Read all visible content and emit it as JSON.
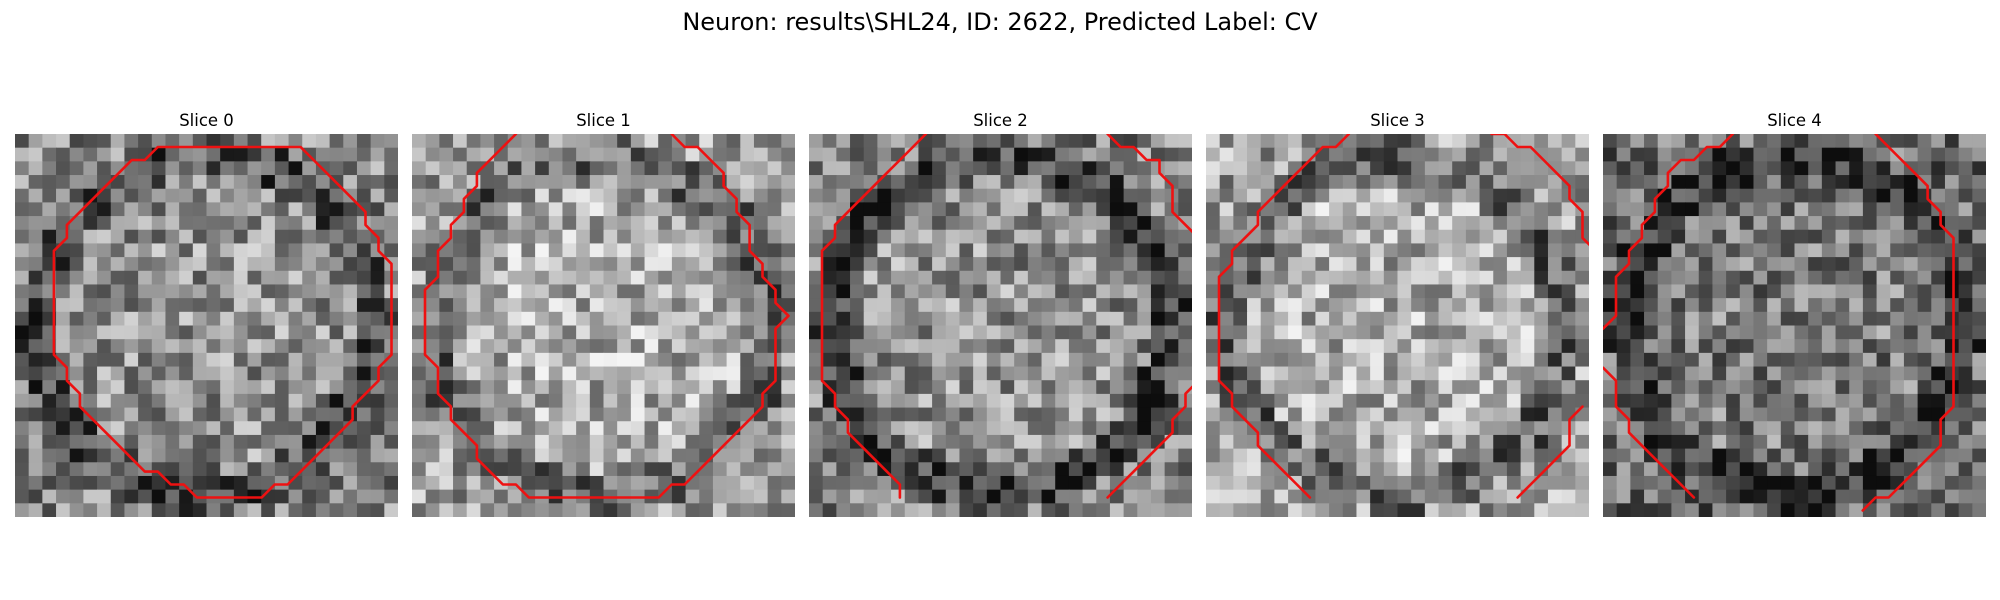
{
  "figure": {
    "title": "Neuron: results\\SHL24, ID: 2622, Predicted Label: CV"
  },
  "colors": {
    "contour": "#ee1111",
    "background": "#ffffff",
    "colormap": "gray"
  },
  "grid_size": 28,
  "slices": [
    {
      "title": "Slice 0",
      "brightness": "medium",
      "contours": [
        [
          [
            14,
            1
          ],
          [
            22,
            1
          ],
          [
            23,
            2
          ],
          [
            24,
            3
          ],
          [
            25,
            4
          ],
          [
            26,
            5
          ],
          [
            27,
            6
          ],
          [
            27,
            7
          ],
          [
            28,
            8
          ],
          [
            28,
            9
          ],
          [
            29,
            10
          ],
          [
            29,
            17
          ],
          [
            28,
            18
          ],
          [
            28,
            19
          ],
          [
            27,
            20
          ],
          [
            26,
            21
          ],
          [
            26,
            22
          ],
          [
            25,
            23
          ],
          [
            24,
            24
          ],
          [
            23,
            25
          ],
          [
            22,
            26
          ],
          [
            21,
            27
          ],
          [
            20,
            27
          ],
          [
            19,
            28
          ],
          [
            14,
            28
          ],
          [
            13,
            27
          ],
          [
            12,
            27
          ],
          [
            11,
            26
          ],
          [
            10,
            26
          ],
          [
            9,
            25
          ],
          [
            8,
            24
          ],
          [
            7,
            23
          ],
          [
            6,
            22
          ],
          [
            5,
            21
          ],
          [
            5,
            20
          ],
          [
            4,
            19
          ],
          [
            4,
            18
          ],
          [
            3,
            17
          ],
          [
            3,
            10
          ],
          [
            3,
            9
          ],
          [
            4,
            8
          ],
          [
            4,
            7
          ],
          [
            5,
            6
          ],
          [
            6,
            5
          ],
          [
            7,
            4
          ],
          [
            8,
            3
          ],
          [
            9,
            2
          ],
          [
            10,
            2
          ],
          [
            11,
            1
          ],
          [
            14,
            1
          ]
        ]
      ]
    },
    {
      "title": "Slice 1",
      "brightness": "bright",
      "contours": [
        [
          [
            8,
            0
          ],
          [
            7,
            1
          ],
          [
            6,
            2
          ],
          [
            5,
            3
          ],
          [
            5,
            4
          ],
          [
            4,
            5
          ],
          [
            4,
            6
          ],
          [
            3,
            7
          ],
          [
            3,
            8
          ],
          [
            2,
            9
          ],
          [
            2,
            11
          ],
          [
            1,
            12
          ],
          [
            1,
            17
          ],
          [
            2,
            18
          ],
          [
            2,
            20
          ],
          [
            3,
            21
          ],
          [
            3,
            22
          ],
          [
            4,
            23
          ],
          [
            5,
            24
          ],
          [
            5,
            25
          ],
          [
            6,
            26
          ],
          [
            7,
            27
          ],
          [
            8,
            27
          ],
          [
            9,
            28
          ],
          [
            19,
            28
          ],
          [
            20,
            27
          ],
          [
            21,
            27
          ],
          [
            22,
            26
          ],
          [
            23,
            25
          ],
          [
            24,
            24
          ],
          [
            25,
            23
          ],
          [
            26,
            22
          ],
          [
            27,
            21
          ],
          [
            27,
            20
          ],
          [
            28,
            19
          ],
          [
            28,
            15
          ],
          [
            29,
            14
          ],
          [
            28,
            13
          ],
          [
            28,
            12
          ],
          [
            27,
            11
          ],
          [
            27,
            10
          ],
          [
            26,
            9
          ],
          [
            26,
            7
          ],
          [
            25,
            6
          ],
          [
            25,
            5
          ],
          [
            24,
            4
          ],
          [
            24,
            3
          ],
          [
            23,
            2
          ],
          [
            22,
            1
          ],
          [
            21,
            1
          ],
          [
            20,
            0
          ]
        ]
      ]
    },
    {
      "title": "Slice 2",
      "brightness": "mixed",
      "contours": [
        [
          [
            9,
            0
          ],
          [
            8,
            1
          ],
          [
            7,
            2
          ],
          [
            6,
            3
          ],
          [
            5,
            4
          ],
          [
            4,
            5
          ],
          [
            3,
            6
          ],
          [
            2,
            7
          ],
          [
            2,
            8
          ],
          [
            1,
            9
          ],
          [
            1,
            19
          ],
          [
            2,
            20
          ],
          [
            2,
            21
          ],
          [
            3,
            22
          ],
          [
            3,
            23
          ],
          [
            4,
            24
          ],
          [
            5,
            25
          ],
          [
            6,
            26
          ],
          [
            7,
            27
          ],
          [
            7,
            28
          ]
        ],
        [
          [
            23,
            0
          ],
          [
            24,
            1
          ],
          [
            25,
            1
          ],
          [
            26,
            2
          ],
          [
            27,
            2
          ],
          [
            27,
            3
          ],
          [
            28,
            4
          ],
          [
            28,
            6
          ],
          [
            29,
            7
          ],
          [
            30,
            8
          ]
        ],
        [
          [
            30,
            19
          ],
          [
            29,
            20
          ],
          [
            29,
            21
          ],
          [
            28,
            22
          ],
          [
            28,
            23
          ],
          [
            27,
            24
          ],
          [
            26,
            25
          ],
          [
            25,
            26
          ],
          [
            24,
            27
          ],
          [
            23,
            28
          ]
        ]
      ]
    },
    {
      "title": "Slice 3",
      "brightness": "bright",
      "contours": [
        [
          [
            11,
            0
          ],
          [
            10,
            1
          ],
          [
            9,
            1
          ],
          [
            8,
            2
          ],
          [
            7,
            3
          ],
          [
            6,
            4
          ],
          [
            5,
            5
          ],
          [
            4,
            6
          ],
          [
            4,
            7
          ],
          [
            3,
            8
          ],
          [
            2,
            9
          ],
          [
            2,
            10
          ],
          [
            1,
            11
          ],
          [
            1,
            19
          ],
          [
            2,
            20
          ],
          [
            2,
            21
          ],
          [
            3,
            22
          ],
          [
            4,
            23
          ],
          [
            4,
            24
          ],
          [
            5,
            25
          ],
          [
            6,
            26
          ],
          [
            7,
            27
          ],
          [
            8,
            28
          ]
        ],
        [
          [
            22,
            0
          ],
          [
            23,
            0
          ],
          [
            24,
            1
          ],
          [
            25,
            1
          ],
          [
            26,
            2
          ],
          [
            27,
            3
          ],
          [
            28,
            4
          ],
          [
            28,
            5
          ],
          [
            29,
            6
          ],
          [
            29,
            8
          ],
          [
            30,
            9
          ]
        ],
        [
          [
            29,
            21
          ],
          [
            28,
            22
          ],
          [
            28,
            24
          ],
          [
            27,
            25
          ],
          [
            26,
            26
          ],
          [
            25,
            27
          ],
          [
            24,
            28
          ]
        ]
      ]
    },
    {
      "title": "Slice 4",
      "brightness": "dark",
      "contours": [
        [
          [
            10,
            0
          ],
          [
            9,
            1
          ],
          [
            8,
            1
          ],
          [
            7,
            2
          ],
          [
            6,
            2
          ],
          [
            5,
            3
          ],
          [
            5,
            4
          ],
          [
            4,
            5
          ],
          [
            4,
            6
          ],
          [
            3,
            7
          ],
          [
            3,
            8
          ],
          [
            2,
            9
          ],
          [
            2,
            10
          ],
          [
            1,
            11
          ],
          [
            1,
            14
          ],
          [
            0,
            15
          ]
        ],
        [
          [
            0,
            18
          ],
          [
            1,
            19
          ],
          [
            1,
            21
          ],
          [
            2,
            22
          ],
          [
            2,
            23
          ],
          [
            3,
            24
          ],
          [
            4,
            25
          ],
          [
            5,
            26
          ],
          [
            6,
            27
          ],
          [
            7,
            28
          ]
        ],
        [
          [
            21,
            0
          ],
          [
            22,
            1
          ],
          [
            23,
            2
          ],
          [
            24,
            3
          ],
          [
            25,
            4
          ],
          [
            25,
            5
          ],
          [
            26,
            6
          ],
          [
            26,
            7
          ],
          [
            27,
            8
          ],
          [
            27,
            21
          ],
          [
            26,
            22
          ],
          [
            26,
            24
          ],
          [
            25,
            25
          ],
          [
            24,
            26
          ],
          [
            23,
            27
          ],
          [
            22,
            28
          ],
          [
            21,
            28
          ],
          [
            20,
            29
          ]
        ]
      ]
    }
  ]
}
